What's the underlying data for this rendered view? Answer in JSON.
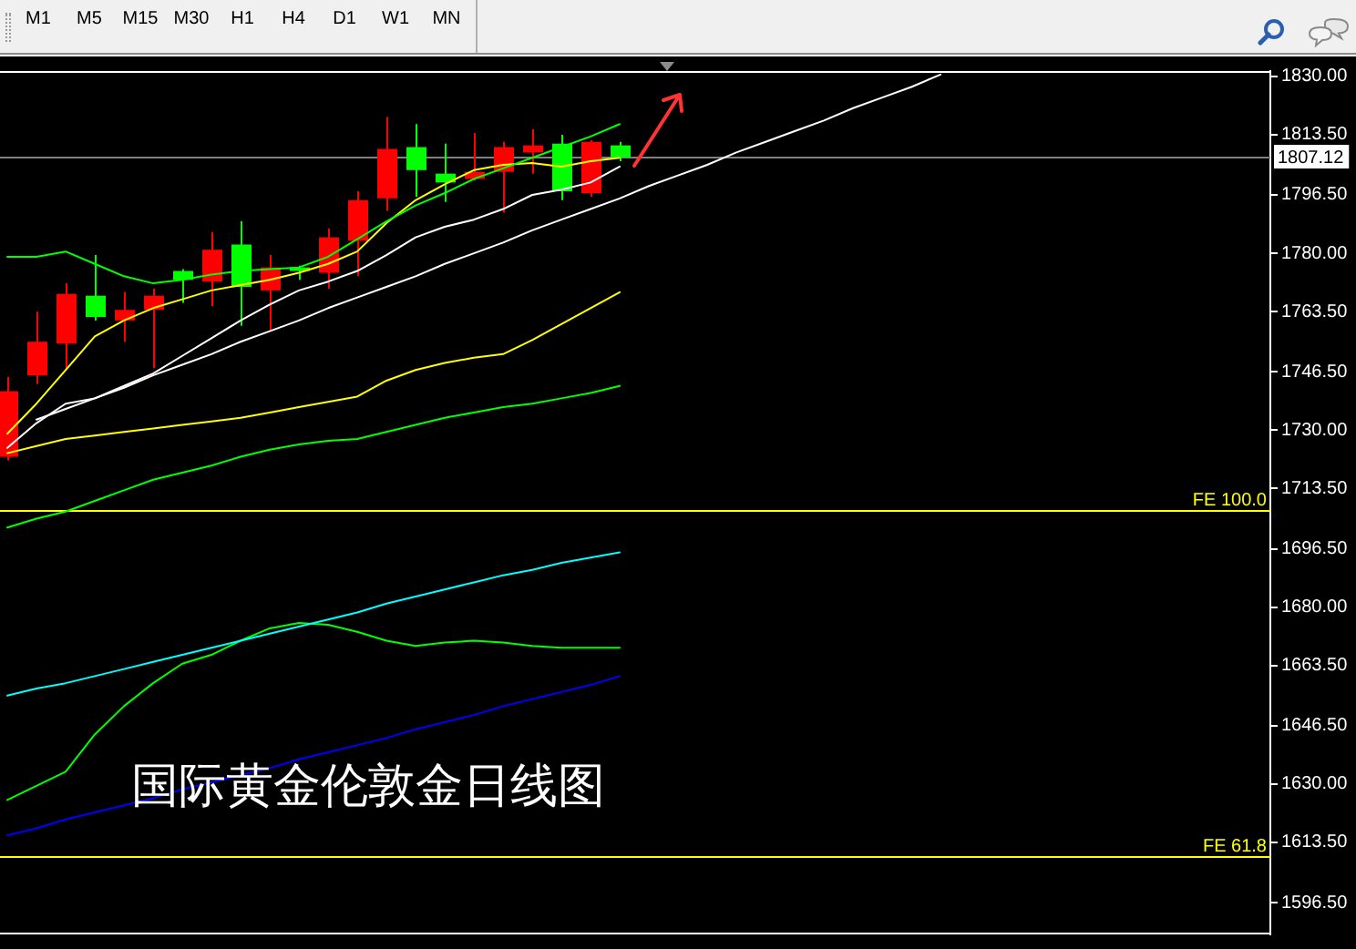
{
  "chart_data": {
    "type": "candlestick",
    "title": "国际黄金伦敦金日线图",
    "categories": [
      null,
      null,
      null,
      null,
      null,
      null,
      null,
      null,
      null,
      null,
      null,
      null,
      null,
      null,
      null,
      null,
      null,
      null,
      null,
      null,
      null,
      null,
      null,
      null,
      null,
      null,
      null,
      null,
      null,
      null,
      null,
      null,
      null,
      null,
      null,
      null,
      null,
      null,
      null,
      null,
      null,
      null,
      null,
      null
    ],
    "ohlc": [
      [
        1722.5,
        1745,
        1721.5,
        1741
      ],
      [
        1745.5,
        1763.5,
        1743,
        1755
      ],
      [
        1754.5,
        1771.5,
        1747,
        1768.5
      ],
      [
        1768,
        1779.5,
        1761,
        1762
      ],
      [
        1761,
        1769,
        1755,
        1764
      ],
      [
        1764,
        1770,
        1747.5,
        1768
      ],
      [
        1775,
        1775.5,
        1766,
        1772.5
      ],
      [
        1772,
        1786,
        1765,
        1781
      ],
      [
        1782.5,
        1789,
        1759.5,
        1770.5
      ],
      [
        1769.5,
        1779.5,
        1758,
        1776
      ],
      [
        1776,
        1776.5,
        1772.5,
        1775
      ],
      [
        1774.5,
        1787,
        1770,
        1784.5
      ],
      [
        1783.5,
        1797.5,
        1773.5,
        1795
      ],
      [
        1795.5,
        1818.5,
        1792,
        1809.5
      ],
      [
        1810,
        1816.5,
        1796,
        1803.5
      ],
      [
        1802.5,
        1811,
        1794.5,
        1800
      ],
      [
        1801,
        1814,
        1800.5,
        1803
      ],
      [
        1803,
        1811.5,
        1791.5,
        1810
      ],
      [
        1808.5,
        1815,
        1802.5,
        1810.5
      ],
      [
        1811,
        1813.5,
        1795,
        1797.5
      ],
      [
        1797,
        1812,
        1796,
        1811.5
      ],
      [
        1810.5,
        1811.5,
        1806,
        1807.12
      ],
      null,
      null,
      null,
      null,
      null,
      null,
      null,
      null,
      null,
      null,
      null,
      null,
      null,
      null,
      null,
      null,
      null,
      null,
      null,
      null,
      null,
      null
    ],
    "colors": [
      "#ff0000",
      "#ff0000",
      "#ff0000",
      "#00ff00",
      "#ff0000",
      "#ff0000",
      "#00ff00",
      "#ff0000",
      "#00ff00",
      "#ff0000",
      "#00ff00",
      "#ff0000",
      "#ff0000",
      "#ff0000",
      "#00ff00",
      "#00ff00",
      "#ff0000",
      "#ff0000",
      "#ff0000",
      "#00ff00",
      "#ff0000",
      "#00ff00",
      null,
      null,
      null,
      null,
      null,
      null,
      null,
      null,
      null,
      null,
      null,
      null,
      null,
      null,
      null,
      null,
      null,
      null,
      null,
      null,
      null,
      null
    ],
    "series": [
      {
        "type": "line",
        "color": "#00ff00",
        "values": [
          1779,
          1779,
          1780.5,
          1777,
          1773.5,
          1771.5,
          1772.5,
          1774,
          1775,
          1775.5,
          1776,
          1779,
          1784,
          1789,
          1793.5,
          1797,
          1801,
          1804,
          1807,
          1810,
          1813,
          1816.5,
          null,
          null,
          null,
          null,
          null,
          null,
          null,
          null,
          null,
          null,
          null,
          null,
          null,
          null,
          null,
          null,
          null,
          null,
          null,
          null,
          null,
          null
        ]
      },
      {
        "type": "line",
        "color": "#ffff00",
        "values": [
          1729,
          1737.5,
          1747,
          1756.5,
          1761,
          1764.5,
          1767,
          1769.5,
          1771,
          1772.5,
          1774.5,
          1777,
          1780.5,
          1788.5,
          1795,
          1799.5,
          1803.5,
          1805,
          1805.5,
          1804.5,
          1806,
          1807,
          null,
          null,
          null,
          null,
          null,
          null,
          null,
          null,
          null,
          null,
          null,
          null,
          null,
          null,
          null,
          null,
          null,
          null,
          null,
          null,
          null,
          null
        ]
      },
      {
        "type": "line",
        "color": "#ffffff",
        "values": [
          1725,
          1732,
          1737.5,
          1739,
          1742.5,
          1746,
          1751,
          1756,
          1761,
          1765.5,
          1769.5,
          1772,
          1775,
          1779.5,
          1784.5,
          1787.5,
          1789.5,
          1792.5,
          1796.5,
          1798,
          1800,
          1804.5,
          null,
          null,
          null,
          null,
          null,
          null,
          null,
          null,
          null,
          null,
          null,
          null,
          null,
          null,
          null,
          null,
          null,
          null,
          null,
          null,
          null,
          null
        ]
      },
      {
        "type": "line",
        "color": "#ffff00",
        "values": [
          1723.5,
          1725.5,
          1727.5,
          1728.5,
          1729.5,
          1730.5,
          1731.5,
          1732.5,
          1733.5,
          1735,
          1736.5,
          1738,
          1739.5,
          1744,
          1747,
          1749,
          1750.5,
          1751.5,
          1755.5,
          1760,
          1764.5,
          1769,
          null,
          null,
          null,
          null,
          null,
          null,
          null,
          null,
          null,
          null,
          null,
          null,
          null,
          null,
          null,
          null,
          null,
          null,
          null,
          null,
          null,
          null
        ]
      },
      {
        "type": "line",
        "color": "#00ff00",
        "values": [
          1702.5,
          1705,
          1707,
          1710,
          1713,
          1716,
          1718,
          1720,
          1722.5,
          1724.5,
          1726,
          1727,
          1727.5,
          1729.5,
          1731.5,
          1733.5,
          1735,
          1736.5,
          1737.5,
          1739,
          1740.5,
          1742.5,
          null,
          null,
          null,
          null,
          null,
          null,
          null,
          null,
          null,
          null,
          null,
          null,
          null,
          null,
          null,
          null,
          null,
          null,
          null,
          null,
          null,
          null
        ]
      },
      {
        "type": "line",
        "color": "#00ffff",
        "values": [
          1655,
          1657,
          1658.5,
          1660.5,
          1662.5,
          1664.5,
          1666.5,
          1668.5,
          1670.5,
          1672.5,
          1674.5,
          1676.5,
          1678.5,
          1681,
          1683,
          1685,
          1687,
          1689,
          1690.5,
          1692.5,
          1694,
          1695.5,
          null,
          null,
          null,
          null,
          null,
          null,
          null,
          null,
          null,
          null,
          null,
          null,
          null,
          null,
          null,
          null,
          null,
          null,
          null,
          null,
          null,
          null
        ]
      },
      {
        "type": "line",
        "color": "#00ff00",
        "values": [
          1625.5,
          1629.5,
          1633.5,
          1644,
          1652,
          1658.5,
          1664,
          1666.5,
          1670.5,
          1674,
          1675.5,
          1675,
          1673,
          1670.5,
          1669,
          1670,
          1670.5,
          1670,
          1669,
          1668.5,
          1668.5,
          1668.5,
          null,
          null,
          null,
          null,
          null,
          null,
          null,
          null,
          null,
          null,
          null,
          null,
          null,
          null,
          null,
          null,
          null,
          null,
          null,
          null,
          null,
          null
        ]
      },
      {
        "type": "line",
        "color": "#0000ff",
        "values": [
          1615.5,
          1617.5,
          1620,
          1622,
          1624,
          1626,
          1628.5,
          1630.5,
          1632.5,
          1634.5,
          1637,
          1639,
          1641,
          1643,
          1645.5,
          1647.5,
          1649.5,
          1652,
          1654,
          1656,
          1658,
          1660.5,
          null,
          null,
          null,
          null,
          null,
          null,
          null,
          null,
          null,
          null,
          null,
          null,
          null,
          null,
          null,
          null,
          null,
          null,
          null,
          null,
          null,
          null
        ]
      },
      {
        "type": "line",
        "color": "#ffffff",
        "values": [
          null,
          1733,
          1736,
          1739,
          1742,
          1745.5,
          1748.5,
          1751.5,
          1755,
          1758,
          1761,
          1764.5,
          1767.5,
          1770.5,
          1773.5,
          1777,
          1780,
          1783,
          1786.5,
          1789.5,
          1792.5,
          1795.5,
          1799,
          1802,
          1805,
          1808.5,
          1811.5,
          1814.5,
          1817.5,
          1821,
          1824,
          1827,
          1830.5,
          null,
          null,
          null,
          null,
          null,
          null,
          null,
          null,
          null,
          null,
          null
        ]
      }
    ],
    "ylim": [
      1587.5,
      1831.5
    ],
    "yticks": [
      {
        "value": 1830,
        "label": "1830.00"
      },
      {
        "value": 1813.5,
        "label": "1813.50"
      },
      {
        "value": 1796.5,
        "label": "1796.50"
      },
      {
        "value": 1780,
        "label": "1780.00"
      },
      {
        "value": 1763.5,
        "label": "1763.50"
      },
      {
        "value": 1746.5,
        "label": "1746.50"
      },
      {
        "value": 1730,
        "label": "1730.00"
      },
      {
        "value": 1713.5,
        "label": "1713.50"
      },
      {
        "value": 1696.5,
        "label": "1696.50"
      },
      {
        "value": 1680,
        "label": "1680.00"
      },
      {
        "value": 1663.5,
        "label": "1663.50"
      },
      {
        "value": 1646.5,
        "label": "1646.50"
      },
      {
        "value": 1630,
        "label": "1630.00"
      },
      {
        "value": 1613.5,
        "label": "1613.50"
      },
      {
        "value": 1596.5,
        "label": "1596.50"
      }
    ],
    "ref_lines": [
      {
        "axis": "y",
        "value": 1807.12,
        "label": "1807.12",
        "color": "#808080"
      },
      {
        "axis": "y",
        "value": 1707.5,
        "label": "FE 100.0",
        "color": "#ffff00"
      },
      {
        "axis": "y",
        "value": 1609.5,
        "label": "FE 61.8",
        "color": "#ffff00"
      }
    ],
    "annotations": [
      "M1",
      "M5",
      "M15",
      "M30",
      "H1",
      "H4",
      "D1",
      "W1",
      "MN"
    ],
    "tick_labels": "y"
  }
}
